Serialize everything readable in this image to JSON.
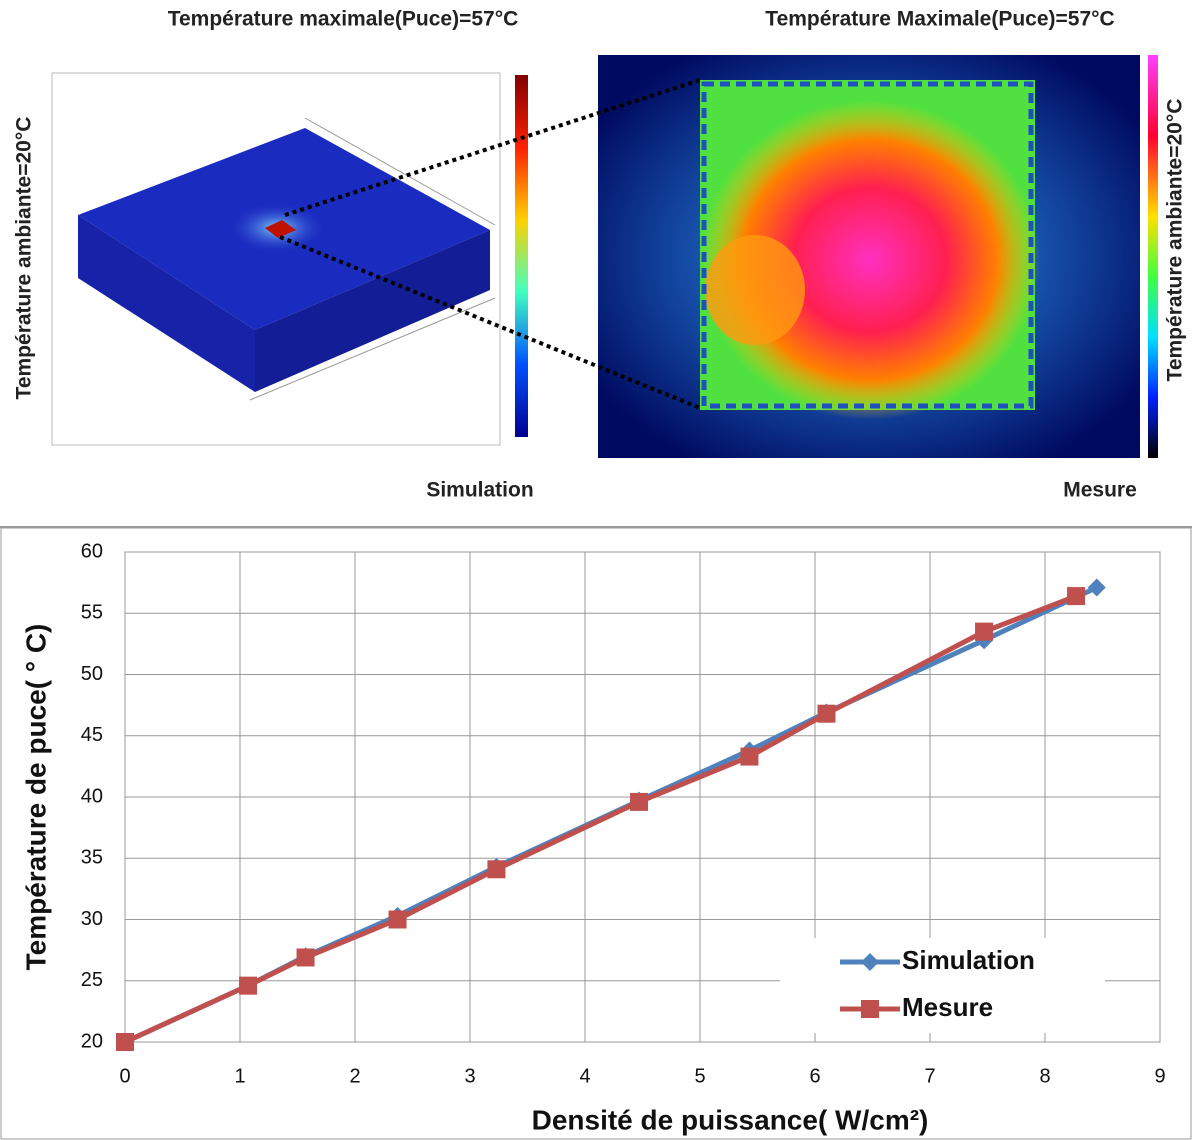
{
  "figure": {
    "simulation_title": "Température maximale(Puce)=57°C",
    "measure_title": "Température Maximale(Puce)=57°C",
    "ambient_left": "Température ambiante=20°C",
    "ambient_right": "Température ambiante=20°C",
    "simulation_caption": "Simulation",
    "measure_caption": "Mesure"
  },
  "chart_data": {
    "type": "line",
    "xlabel": "Densité de puissance( W/cm²)",
    "ylabel": "Température de puce( ° C)",
    "xlim": [
      0,
      9
    ],
    "xticks": [
      0,
      1,
      2,
      3,
      4,
      5,
      6,
      7,
      8,
      9
    ],
    "ylim": [
      20,
      60
    ],
    "yticks": [
      20,
      25,
      30,
      35,
      40,
      45,
      50,
      55,
      60
    ],
    "grid": true,
    "legend": "lower right",
    "series": [
      {
        "name": "Simulation",
        "color": "#4f81bd",
        "marker": "diamond",
        "x": [
          0,
          1.07,
          1.57,
          2.37,
          3.23,
          4.47,
          5.43,
          6.1,
          7.47,
          8.45
        ],
        "values": [
          20,
          24.6,
          27.0,
          30.3,
          34.3,
          39.7,
          43.8,
          46.9,
          52.8,
          57.1
        ]
      },
      {
        "name": "Mesure",
        "color": "#c0504d",
        "marker": "square",
        "x": [
          0,
          1.07,
          1.57,
          2.37,
          3.23,
          4.47,
          5.43,
          6.1,
          7.47,
          8.27
        ],
        "values": [
          20,
          24.6,
          26.9,
          30.0,
          34.1,
          39.6,
          43.3,
          46.8,
          53.5,
          56.4
        ]
      }
    ]
  }
}
